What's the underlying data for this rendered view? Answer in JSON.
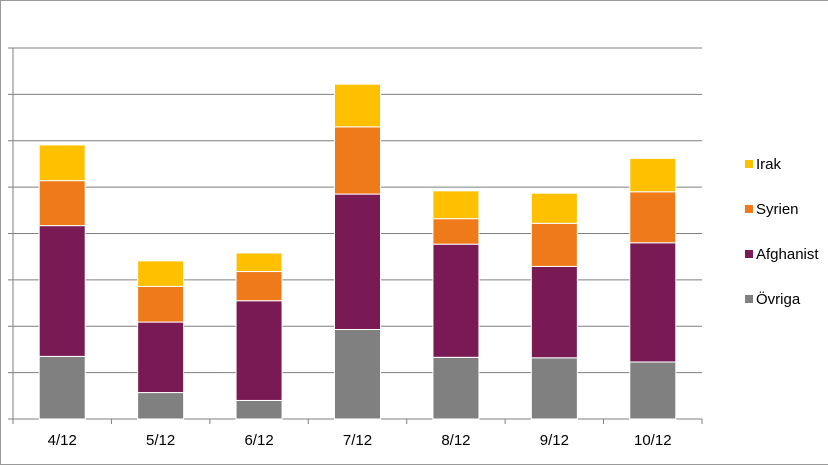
{
  "chart_data": {
    "type": "bar",
    "stacked": true,
    "categories": [
      "4/12",
      "5/12",
      "6/12",
      "7/12",
      "8/12",
      "9/12",
      "10/12"
    ],
    "series": [
      {
        "name": "Övriga",
        "color": "#808080",
        "values": [
          135,
          57,
          40,
          193,
          133,
          132,
          123
        ]
      },
      {
        "name": "Afghanist",
        "color": "#7a1a55",
        "values": [
          282,
          152,
          215,
          292,
          244,
          197,
          257
        ]
      },
      {
        "name": "Syrien",
        "color": "#ee7a1a",
        "values": [
          97,
          77,
          63,
          145,
          55,
          93,
          110
        ]
      },
      {
        "name": "Irak",
        "color": "#ffc000",
        "values": [
          77,
          55,
          40,
          92,
          60,
          65,
          72
        ]
      }
    ],
    "ylim": [
      0,
      800
    ],
    "ytick_step": 100,
    "grid": true,
    "legend": "right",
    "legend_order": [
      "Irak",
      "Syrien",
      "Afghanist",
      "Övriga"
    ]
  }
}
